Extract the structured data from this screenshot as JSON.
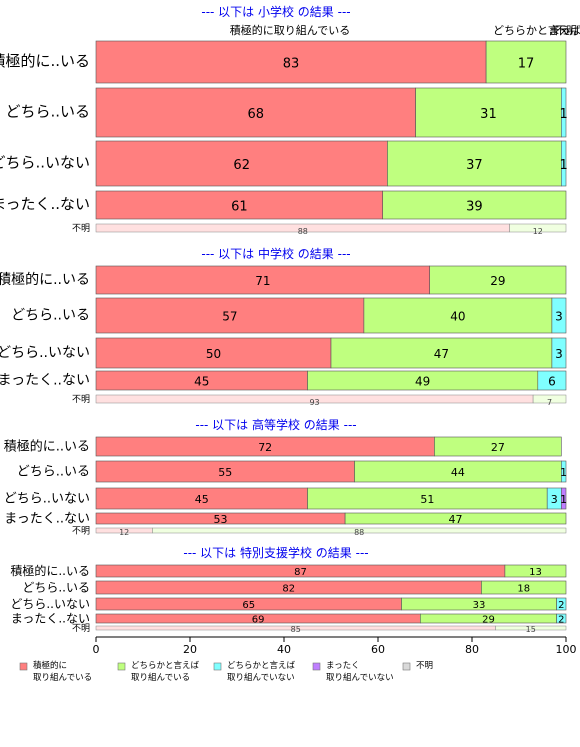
{
  "chart_data": [
    {
      "type": "bar",
      "orientation": "horizontal",
      "stacked": true,
      "title": "--- 以下は 小学校 の結果 ---",
      "header_labels": [
        "積極的に取り組んでいる",
        "どちらかと言えば",
        "まっ",
        "不明"
      ],
      "categories": [
        "積極的に..いる",
        "どちら..いる",
        "どちら..いない",
        "まったく..ない"
      ],
      "series": [
        {
          "name": "積極的に取り組んでいる",
          "values": [
            83,
            68,
            62,
            61
          ]
        },
        {
          "name": "どちらかと言えば取り組んでいる",
          "values": [
            17,
            31,
            37,
            39
          ]
        },
        {
          "name": "どちらかと言えば取り組んでいない",
          "values": [
            0,
            1,
            1,
            0
          ]
        },
        {
          "name": "まったく取り組んでいない",
          "values": [
            0,
            0,
            0,
            0
          ]
        },
        {
          "name": "不明",
          "values": [
            0,
            0,
            0,
            0
          ]
        }
      ],
      "unknown_row": {
        "label": "不明",
        "values": [
          88,
          12
        ]
      },
      "xlim": [
        0,
        100
      ]
    },
    {
      "type": "bar",
      "orientation": "horizontal",
      "stacked": true,
      "title": "--- 以下は 中学校 の結果 ---",
      "categories": [
        "積極的に..いる",
        "どちら..いる",
        "どちら..いない",
        "まったく..ない"
      ],
      "series": [
        {
          "name": "積極的に取り組んでいる",
          "values": [
            71,
            57,
            50,
            45
          ]
        },
        {
          "name": "どちらかと言えば取り組んでいる",
          "values": [
            29,
            40,
            47,
            49
          ]
        },
        {
          "name": "どちらかと言えば取り組んでいない",
          "values": [
            0,
            3,
            3,
            6
          ]
        },
        {
          "name": "まったく取り組んでいない",
          "values": [
            0,
            0,
            0,
            0
          ]
        },
        {
          "name": "不明",
          "values": [
            0,
            0,
            0,
            0
          ]
        }
      ],
      "unknown_row": {
        "label": "不明",
        "values": [
          93,
          7
        ]
      },
      "xlim": [
        0,
        100
      ]
    },
    {
      "type": "bar",
      "orientation": "horizontal",
      "stacked": true,
      "title": "--- 以下は 高等学校 の結果 ---",
      "categories": [
        "積極的に..いる",
        "どちら..いる",
        "どちら..いない",
        "まったく..ない"
      ],
      "series": [
        {
          "name": "積極的に取り組んでいる",
          "values": [
            72,
            55,
            45,
            53
          ]
        },
        {
          "name": "どちらかと言えば取り組んでいる",
          "values": [
            27,
            44,
            51,
            47
          ]
        },
        {
          "name": "どちらかと言えば取り組んでいない",
          "values": [
            0,
            1,
            3,
            0
          ]
        },
        {
          "name": "まったく取り組んでいない",
          "values": [
            0,
            0,
            1,
            0
          ]
        },
        {
          "name": "不明",
          "values": [
            0,
            0,
            0,
            0
          ]
        }
      ],
      "unknown_row": {
        "label": "不明",
        "values": [
          12,
          88
        ]
      },
      "xlim": [
        0,
        100
      ]
    },
    {
      "type": "bar",
      "orientation": "horizontal",
      "stacked": true,
      "title": "--- 以下は 特別支援学校 の結果 ---",
      "categories": [
        "積極的に..いる",
        "どちら..いる",
        "どちら..いない",
        "まったく..ない"
      ],
      "series": [
        {
          "name": "積極的に取り組んでいる",
          "values": [
            87,
            82,
            65,
            69
          ]
        },
        {
          "name": "どちらかと言えば取り組んでいる",
          "values": [
            13,
            18,
            33,
            29
          ]
        },
        {
          "name": "どちらかと言えば取り組んでいない",
          "values": [
            0,
            0,
            2,
            2
          ]
        },
        {
          "name": "まったく取り組んでいない",
          "values": [
            0,
            0,
            0,
            0
          ]
        },
        {
          "name": "不明",
          "values": [
            0,
            0,
            0,
            0
          ]
        }
      ],
      "unknown_row": {
        "label": "不明",
        "values": [
          85,
          15
        ]
      },
      "xlim": [
        0,
        100
      ]
    }
  ],
  "axis": {
    "ticks": [
      0,
      20,
      40,
      60,
      80,
      100
    ]
  },
  "legend": {
    "position": "bottom-left",
    "items": [
      {
        "line1": "積極的に",
        "line2": "取り組んでいる",
        "color": "#ff7f7f"
      },
      {
        "line1": "どちらかと言えば",
        "line2": "取り組んでいる",
        "color": "#bfff7f"
      },
      {
        "line1": "どちらかと言えば",
        "line2": "取り組んでいない",
        "color": "#7fffff"
      },
      {
        "line1": "まったく",
        "line2": "取り組んでいない",
        "color": "#bf7fff"
      },
      {
        "line1": "不明",
        "line2": "",
        "color": "#d9d9d9"
      }
    ]
  },
  "colors": {
    "series": [
      "#ff7f7f",
      "#bfff7f",
      "#7fffff",
      "#bf7fff",
      "#d9d9d9"
    ],
    "unknown_row": [
      "#ffe0e0",
      "#f0ffe0"
    ],
    "title": "#0000ee"
  }
}
